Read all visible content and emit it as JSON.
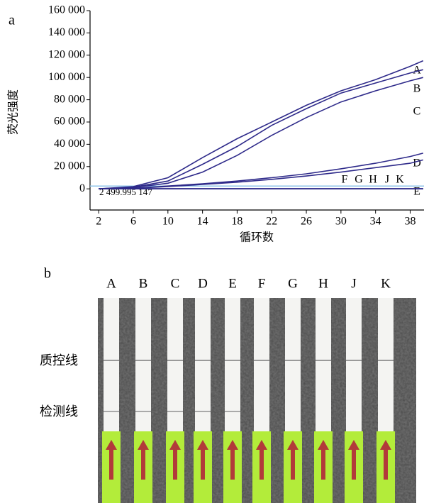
{
  "chart_data": {
    "type": "line",
    "panel_label": "a",
    "y_label": "荧光强度",
    "x_label": "循环数",
    "x": [
      2,
      6,
      10,
      14,
      18,
      22,
      26,
      30,
      34,
      38,
      39.5
    ],
    "series": [
      {
        "name": "A",
        "color": "#2e2a8a",
        "values": [
          0,
          2000,
          10000,
          28000,
          45000,
          60000,
          75000,
          88000,
          98000,
          110000,
          115000
        ]
      },
      {
        "name": "B",
        "color": "#2e2a8a",
        "values": [
          0,
          1500,
          7000,
          22000,
          38000,
          57000,
          72000,
          86000,
          95000,
          104000,
          107000
        ]
      },
      {
        "name": "C",
        "color": "#2e2a8a",
        "values": [
          0,
          1200,
          5000,
          15000,
          30000,
          48000,
          64000,
          78000,
          88000,
          97000,
          100000
        ]
      },
      {
        "name": "D",
        "color": "#2e2a8a",
        "values": [
          0,
          500,
          2500,
          4500,
          7000,
          10000,
          13500,
          18000,
          23000,
          29000,
          32000
        ]
      },
      {
        "name": "E",
        "color": "#2e2a8a",
        "values": [
          0,
          500,
          2000,
          4000,
          6000,
          8500,
          11500,
          15000,
          19000,
          23000,
          26000
        ]
      },
      {
        "name": "F",
        "color": "#2e2a8a",
        "values": [
          0,
          0,
          0,
          0,
          0,
          0,
          0,
          0,
          0,
          0,
          0
        ]
      },
      {
        "name": "G",
        "color": "#2e2a8a",
        "values": [
          0,
          0,
          0,
          0,
          0,
          0,
          0,
          0,
          0,
          0,
          0
        ]
      },
      {
        "name": "H",
        "color": "#2e2a8a",
        "values": [
          0,
          0,
          0,
          0,
          0,
          0,
          0,
          0,
          0,
          0,
          0
        ]
      },
      {
        "name": "J",
        "color": "#2e2a8a",
        "values": [
          0,
          0,
          0,
          0,
          0,
          0,
          0,
          0,
          0,
          0,
          0
        ]
      },
      {
        "name": "K",
        "color": "#2e2a8a",
        "values": [
          0,
          0,
          0,
          0,
          0,
          0,
          0,
          0,
          0,
          0,
          0
        ]
      }
    ],
    "threshold": 2499.995147,
    "threshold_label": "2 499.995 147",
    "threshold_color": "#8ec3ea",
    "xlim": [
      1,
      39.6
    ],
    "xticks": [
      2,
      6,
      10,
      14,
      18,
      22,
      26,
      30,
      34,
      38
    ],
    "ylim": [
      -19000,
      160000
    ],
    "yticks": [
      {
        "value": 0,
        "label": "0"
      },
      {
        "value": 20000,
        "label": "20 000"
      },
      {
        "value": 40000,
        "label": "40 000"
      },
      {
        "value": 60000,
        "label": "60 000"
      },
      {
        "value": 80000,
        "label": "80 000"
      },
      {
        "value": 100000,
        "label": "100 000"
      },
      {
        "value": 120000,
        "label": "120 000"
      },
      {
        "value": 140000,
        "label": "140 000"
      },
      {
        "value": 160000,
        "label": "160 000"
      }
    ]
  },
  "panel_b": {
    "label": "b",
    "columns": [
      "A",
      "B",
      "C",
      "D",
      "E",
      "F",
      "G",
      "H",
      "J",
      "K"
    ],
    "control_line": "质控线",
    "test_line": "检测线"
  }
}
